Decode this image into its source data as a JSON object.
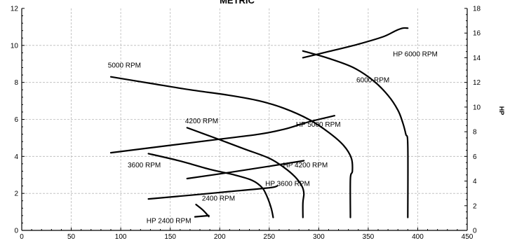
{
  "chart_data": {
    "type": "line",
    "title": "METRIC",
    "xlabel": "",
    "ylabel": "",
    "y2label": "HP",
    "xlim": [
      0,
      450
    ],
    "ylim": [
      0,
      12
    ],
    "y2lim": [
      0,
      18
    ],
    "x_ticks": [
      0,
      50,
      100,
      150,
      200,
      250,
      300,
      350,
      400,
      450
    ],
    "y_ticks": [
      0,
      2,
      4,
      6,
      8,
      10,
      12
    ],
    "y2_ticks": [
      0,
      2,
      4,
      6,
      8,
      10,
      12,
      14,
      16,
      18
    ],
    "grid": true,
    "series": [
      {
        "name": "5000 RPM",
        "axis": "left",
        "x": [
          90,
          130,
          170,
          210,
          240,
          265,
          290,
          310,
          325,
          333,
          334,
          332,
          332
        ],
        "y": [
          8.3,
          7.95,
          7.6,
          7.3,
          7.0,
          6.6,
          6.0,
          5.3,
          4.6,
          3.9,
          3.2,
          2.8,
          0.7
        ]
      },
      {
        "name": "6000 RPM",
        "axis": "left",
        "x": [
          284,
          310,
          335,
          355,
          370,
          380,
          385,
          388,
          390,
          390
        ],
        "y": [
          9.7,
          9.3,
          8.8,
          8.1,
          7.3,
          6.5,
          5.8,
          5.2,
          4.6,
          0.7
        ]
      },
      {
        "name": "4200 RPM",
        "axis": "left",
        "x": [
          167,
          195,
          225,
          250,
          265,
          276,
          283,
          285,
          284,
          284
        ],
        "y": [
          5.55,
          5.0,
          4.4,
          3.9,
          3.4,
          2.9,
          2.4,
          2.0,
          1.5,
          0.7
        ]
      },
      {
        "name": "3600 RPM",
        "axis": "left",
        "x": [
          128,
          160,
          190,
          215,
          233,
          243,
          248,
          252,
          254
        ],
        "y": [
          4.15,
          3.75,
          3.3,
          3.0,
          2.7,
          2.3,
          1.8,
          1.2,
          0.7
        ]
      },
      {
        "name": "2400 RPM",
        "axis": "left",
        "x": [
          176,
          183,
          189
        ],
        "y": [
          1.4,
          1.1,
          0.75
        ]
      },
      {
        "name": "HP 6000 RPM",
        "axis": "right",
        "x": [
          284,
          310,
          340,
          365,
          378,
          385,
          390
        ],
        "y": [
          14.0,
          14.5,
          15.1,
          15.7,
          16.2,
          16.4,
          16.4
        ]
      },
      {
        "name": "HP 5000 RPM",
        "axis": "right",
        "x": [
          90,
          150,
          200,
          240,
          265,
          290,
          316
        ],
        "y": [
          6.3,
          6.9,
          7.4,
          7.8,
          8.2,
          8.8,
          9.3
        ]
      },
      {
        "name": "HP 4200 RPM",
        "axis": "right",
        "x": [
          167,
          210,
          250,
          285
        ],
        "y": [
          4.2,
          4.7,
          5.2,
          5.65
        ]
      },
      {
        "name": "HP 3600 RPM",
        "axis": "right",
        "x": [
          128,
          170,
          210,
          250,
          258
        ],
        "y": [
          2.55,
          2.85,
          3.15,
          3.45,
          3.6
        ]
      },
      {
        "name": "HP 2400 RPM",
        "axis": "right",
        "x": [
          175,
          189
        ],
        "y": [
          1.1,
          1.2
        ]
      }
    ],
    "annotations": [
      {
        "text": "5000 RPM",
        "x": 87,
        "y": 8.8
      },
      {
        "text": "6000 RPM",
        "x": 338,
        "y": 8.0
      },
      {
        "text": "4200 RPM",
        "x": 165,
        "y": 5.8
      },
      {
        "text": "3600 RPM",
        "x": 107,
        "y": 3.4
      },
      {
        "text": "2400 RPM",
        "x": 182,
        "y": 1.6
      },
      {
        "text": "HP 6000 RPM",
        "x": 375,
        "y": 9.4
      },
      {
        "text": "HP 5000 RPM",
        "x": 277,
        "y": 5.6
      },
      {
        "text": "HP 4200 RPM",
        "x": 264,
        "y": 3.4
      },
      {
        "text": "HP 3600 RPM",
        "x": 246,
        "y": 2.4
      },
      {
        "text": "HP 2400 RPM",
        "x": 126,
        "y": 0.4
      }
    ]
  }
}
